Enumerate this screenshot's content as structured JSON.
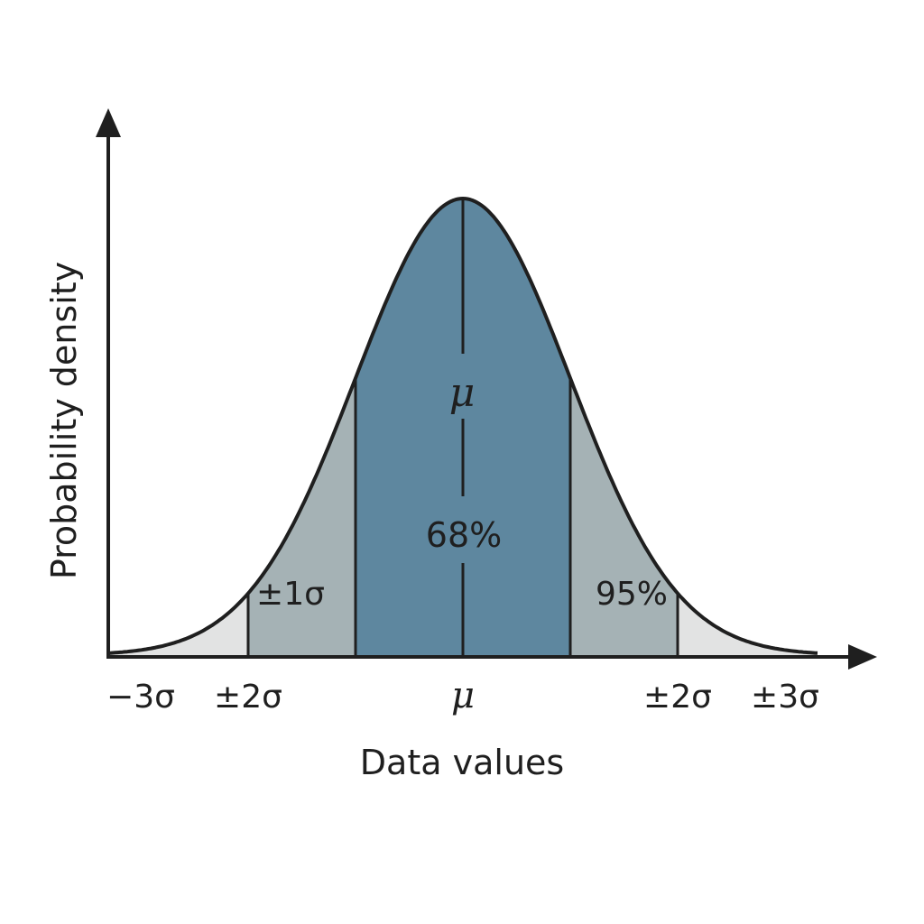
{
  "chart_data": {
    "type": "area",
    "title": "",
    "xlabel": "Data values",
    "ylabel": "Probability density",
    "xlim": [
      -3.4,
      3.4
    ],
    "ylim": [
      0,
      1.25
    ],
    "grid": false,
    "legend": "none",
    "curve": "normal density, mean 0, standard deviation 1",
    "x_tick_positions": [
      -3,
      -2,
      0,
      2,
      3
    ],
    "x_tick_labels": [
      "−3σ",
      "±2σ",
      "μ",
      "±2σ",
      "±3σ"
    ],
    "bands": [
      {
        "name": "tail",
        "from": -3.4,
        "to": -2,
        "color": "#e2e3e3"
      },
      {
        "name": "middle",
        "from": -2,
        "to": -1,
        "color": "#a5b2b5"
      },
      {
        "name": "central",
        "from": -1,
        "to": 1,
        "color": "#5e879f"
      },
      {
        "name": "middle",
        "from": 1,
        "to": 2,
        "color": "#a5b2b5"
      },
      {
        "name": "tail",
        "from": 2,
        "to": 3.4,
        "color": "#e2e3e3"
      }
    ],
    "boundaries": [
      -2,
      -1,
      1,
      2
    ],
    "mean_line": 0,
    "annotations": {
      "center_symbol": "μ",
      "center_pct": "68%",
      "left_band": "±1σ",
      "right_band": "95%"
    },
    "colors": {
      "outline": "#1f1f1f",
      "axis": "#1f1f1f"
    }
  }
}
